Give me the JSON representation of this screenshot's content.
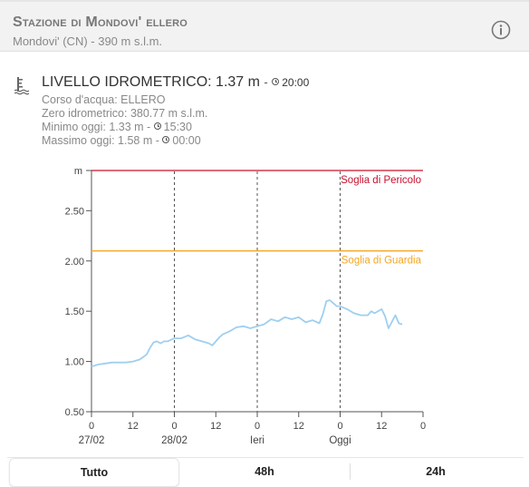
{
  "header": {
    "title": "Stazione di Mondovi' ellero",
    "subtitle": "Mondovi' (CN) - 390 m s.l.m.",
    "info_icon": "info-icon"
  },
  "level": {
    "icon": "hydrometer-icon",
    "title": "LIVELLO IDROMETRICO:",
    "value": "1.37 m",
    "separator": "-",
    "time": "20:00",
    "river": "Corso d'acqua: ELLERO",
    "zero": "Zero idrometrico: 380.77 m s.l.m.",
    "min_label": "Minimo oggi: 1.33 m -",
    "min_time": "15:30",
    "max_label": "Massimo oggi: 1.58 m -",
    "max_time": "00:00"
  },
  "chart_data": {
    "type": "line",
    "ylabel": "m",
    "ylim": [
      0.5,
      2.9
    ],
    "yticks": [
      "0.50",
      "1.00",
      "1.50",
      "2.00",
      "2.50"
    ],
    "xlim": [
      0,
      96
    ],
    "xticks": [
      {
        "x": 0,
        "label": "0"
      },
      {
        "x": 12,
        "label": "12"
      },
      {
        "x": 24,
        "label": "0"
      },
      {
        "x": 36,
        "label": "12"
      },
      {
        "x": 48,
        "label": "0"
      },
      {
        "x": 60,
        "label": "12"
      },
      {
        "x": 72,
        "label": "0"
      },
      {
        "x": 84,
        "label": "12"
      },
      {
        "x": 96,
        "label": "0"
      }
    ],
    "day_labels": [
      {
        "x": 0,
        "label": "27/02"
      },
      {
        "x": 24,
        "label": "28/02"
      },
      {
        "x": 48,
        "label": "Ieri"
      },
      {
        "x": 72,
        "label": "Oggi"
      }
    ],
    "thresholds": [
      {
        "name": "Soglia di Pericolo",
        "value": 2.9,
        "color": "#c8102e"
      },
      {
        "name": "Soglia di Guardia",
        "value": 2.1,
        "color": "#f5a623"
      }
    ],
    "series_color": "#9fcff0",
    "x": [
      0,
      2,
      4,
      6,
      8,
      10,
      12,
      14,
      16,
      17,
      18,
      19,
      20,
      21,
      22,
      24,
      26,
      28,
      30,
      32,
      34,
      35,
      36,
      37,
      38,
      40,
      42,
      44,
      46,
      48,
      50,
      52,
      54,
      56,
      58,
      60,
      62,
      64,
      66,
      67,
      68,
      69,
      70,
      71,
      72,
      74,
      76,
      78,
      80,
      81,
      82,
      84,
      85,
      86,
      88,
      89,
      90
    ],
    "values": [
      0.95,
      0.97,
      0.98,
      0.99,
      0.99,
      0.99,
      1.0,
      1.02,
      1.07,
      1.14,
      1.19,
      1.2,
      1.18,
      1.2,
      1.2,
      1.23,
      1.23,
      1.26,
      1.22,
      1.2,
      1.18,
      1.16,
      1.2,
      1.24,
      1.27,
      1.3,
      1.34,
      1.35,
      1.33,
      1.35,
      1.37,
      1.42,
      1.4,
      1.44,
      1.42,
      1.44,
      1.39,
      1.41,
      1.38,
      1.47,
      1.6,
      1.61,
      1.58,
      1.55,
      1.55,
      1.52,
      1.48,
      1.46,
      1.46,
      1.5,
      1.48,
      1.52,
      1.45,
      1.33,
      1.46,
      1.38,
      1.37
    ]
  },
  "tabs": [
    {
      "label": "Tutto",
      "active": true
    },
    {
      "label": "48h",
      "active": false
    },
    {
      "label": "24h",
      "active": false
    }
  ]
}
